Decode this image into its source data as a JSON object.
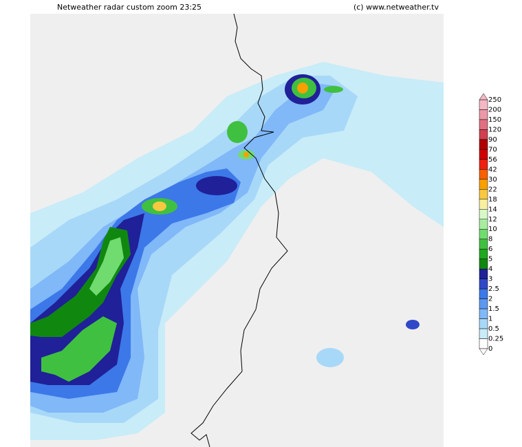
{
  "header": {
    "title": "Netweather radar custom zoom 23:25",
    "copyright": "(c) www.netweather.tv"
  },
  "legend": {
    "labels": [
      250,
      200,
      150,
      120,
      90,
      70,
      56,
      42,
      30,
      22,
      18,
      14,
      12,
      10,
      8,
      6,
      5,
      4,
      3,
      2.5,
      2,
      1.5,
      1,
      0.5,
      0.25,
      0
    ],
    "colors": [
      "#f4b8c4",
      "#ec98a8",
      "#e07080",
      "#d04050",
      "#b00000",
      "#d00000",
      "#f02010",
      "#f86000",
      "#f8a000",
      "#f8c840",
      "#f8f0a0",
      "#d8f8c8",
      "#a8eca0",
      "#70dc70",
      "#40c040",
      "#20a820",
      "#108810",
      "#202098",
      "#3048c8",
      "#3c78e8",
      "#5c98f0",
      "#80b8f8",
      "#a8d8f8",
      "#c8ecf8",
      "#ffffff"
    ]
  }
}
